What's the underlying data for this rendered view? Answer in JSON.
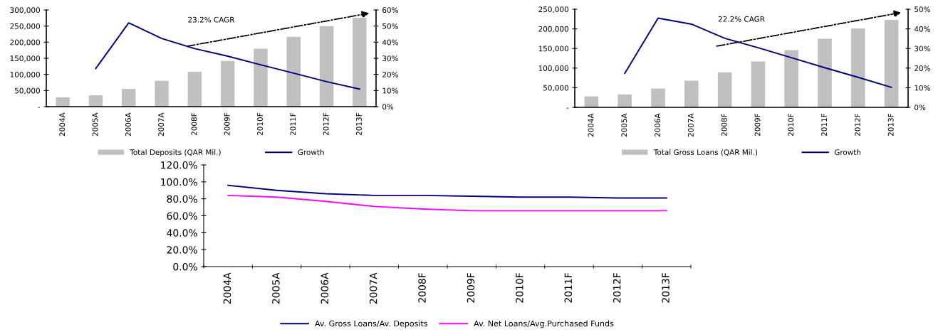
{
  "chart_data": [
    {
      "type": "bar",
      "categories": [
        "2004A",
        "2005A",
        "2006A",
        "2007A",
        "2008F",
        "2009F",
        "2010F",
        "2011F",
        "2012F",
        "2013F"
      ],
      "series": [
        {
          "name": "Total Deposits (QAR Mil.)",
          "color": "#c0c0c0",
          "values": [
            29000,
            35000,
            55000,
            80000,
            108000,
            142000,
            180000,
            217000,
            250000,
            276000
          ]
        },
        {
          "name": "Growth",
          "type": "line",
          "axis": "y2",
          "color": "#000080",
          "values": [
            null,
            23.7,
            52,
            42.3,
            36,
            31.3,
            26,
            20.8,
            15.5,
            10.9
          ]
        }
      ],
      "ylim": [
        0,
        300000
      ],
      "yticks": [
        {
          "value": 0,
          "label": "-"
        },
        {
          "value": 50000,
          "label": "50,000"
        },
        {
          "value": 100000,
          "label": "100,000"
        },
        {
          "value": 150000,
          "label": "150,000"
        },
        {
          "value": 200000,
          "label": "200,000"
        },
        {
          "value": 250000,
          "label": "250,000"
        },
        {
          "value": 300000,
          "label": "300,000"
        }
      ],
      "y2lim": [
        0,
        60
      ],
      "y2ticks": [
        {
          "value": 0,
          "label": "0%"
        },
        {
          "value": 10,
          "label": "10%"
        },
        {
          "value": 20,
          "label": "20%"
        },
        {
          "value": 30,
          "label": "30%"
        },
        {
          "value": 40,
          "label": "40%"
        },
        {
          "value": 50,
          "label": "50%"
        },
        {
          "value": 60,
          "label": "60%"
        }
      ],
      "annotations": [
        "23.2% CAGR"
      ],
      "legend": "bottom",
      "grid": false
    },
    {
      "type": "bar",
      "categories": [
        "2004A",
        "2005A",
        "2006A",
        "2007A",
        "2008F",
        "2009F",
        "2010F",
        "2011F",
        "2012F",
        "2013F"
      ],
      "series": [
        {
          "name": "Total Gross Loans (QAR Mil.)",
          "color": "#c0c0c0",
          "values": [
            28000,
            33000,
            48000,
            68000,
            89000,
            117000,
            146000,
            175000,
            201000,
            223000
          ]
        },
        {
          "name": "Growth",
          "type": "line",
          "axis": "y2",
          "color": "#000080",
          "values": [
            null,
            17.3,
            45.5,
            42.4,
            35.2,
            30.4,
            25.3,
            20.2,
            15.3,
            10.2
          ]
        }
      ],
      "ylim": [
        0,
        250000
      ],
      "yticks": [
        {
          "value": 0,
          "label": "-"
        },
        {
          "value": 50000,
          "label": "50,000"
        },
        {
          "value": 100000,
          "label": "100,000"
        },
        {
          "value": 150000,
          "label": "150,000"
        },
        {
          "value": 200000,
          "label": "200,000"
        },
        {
          "value": 250000,
          "label": "250,000"
        }
      ],
      "y2lim": [
        0,
        50
      ],
      "y2ticks": [
        {
          "value": 0,
          "label": "0%"
        },
        {
          "value": 10,
          "label": "10%"
        },
        {
          "value": 20,
          "label": "20%"
        },
        {
          "value": 30,
          "label": "30%"
        },
        {
          "value": 40,
          "label": "40%"
        },
        {
          "value": 50,
          "label": "50%"
        }
      ],
      "annotations": [
        "22.2% CAGR"
      ],
      "legend": "bottom",
      "grid": false
    },
    {
      "type": "line",
      "categories": [
        "2004A",
        "2005A",
        "2006A",
        "2007A",
        "2008F",
        "2009F",
        "2010F",
        "2011F",
        "2012F",
        "2013F"
      ],
      "series": [
        {
          "name": "Av. Gross Loans/Av. Deposits",
          "color": "#000080",
          "values": [
            96,
            90,
            86,
            84,
            84,
            83,
            82,
            82,
            81,
            81
          ]
        },
        {
          "name": "Av. Net Loans/Avg.Purchased Funds",
          "color": "#ff00ff",
          "values": [
            84,
            82,
            77,
            71,
            68,
            66,
            66,
            66,
            66,
            66
          ]
        }
      ],
      "ylim": [
        0,
        120
      ],
      "yticks": [
        {
          "value": 0,
          "label": "0.0%"
        },
        {
          "value": 20,
          "label": "20.0%"
        },
        {
          "value": 40,
          "label": "40.0%"
        },
        {
          "value": 60,
          "label": "60.0%"
        },
        {
          "value": 80,
          "label": "80.0%"
        },
        {
          "value": 100,
          "label": "100.0%"
        },
        {
          "value": 120,
          "label": "120.0%"
        }
      ],
      "legend": "bottom",
      "grid": false
    }
  ]
}
